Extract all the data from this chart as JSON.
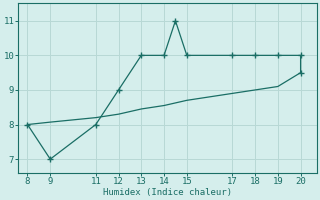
{
  "xlabel": "Humidex (Indice chaleur)",
  "bg_color": "#d5eeec",
  "line_color": "#1a6e65",
  "grid_color": "#b8d8d5",
  "x_zigzag": [
    8,
    9,
    11,
    12,
    13,
    14,
    14.5,
    15,
    17,
    18,
    19,
    20,
    20
  ],
  "y_zigzag": [
    8,
    7,
    8,
    9,
    10,
    10,
    11,
    10,
    10,
    10,
    10,
    10,
    9.5
  ],
  "x_diag": [
    8,
    9,
    11,
    12,
    13,
    14,
    15,
    17,
    18,
    19,
    20
  ],
  "y_diag": [
    8.0,
    8.07,
    8.2,
    8.3,
    8.45,
    8.55,
    8.7,
    8.9,
    9.0,
    9.1,
    9.5
  ],
  "xticks": [
    8,
    9,
    11,
    12,
    13,
    14,
    15,
    17,
    18,
    19,
    20
  ],
  "yticks": [
    7,
    8,
    9,
    10,
    11
  ],
  "xlim": [
    7.6,
    20.7
  ],
  "ylim": [
    6.6,
    11.5
  ]
}
